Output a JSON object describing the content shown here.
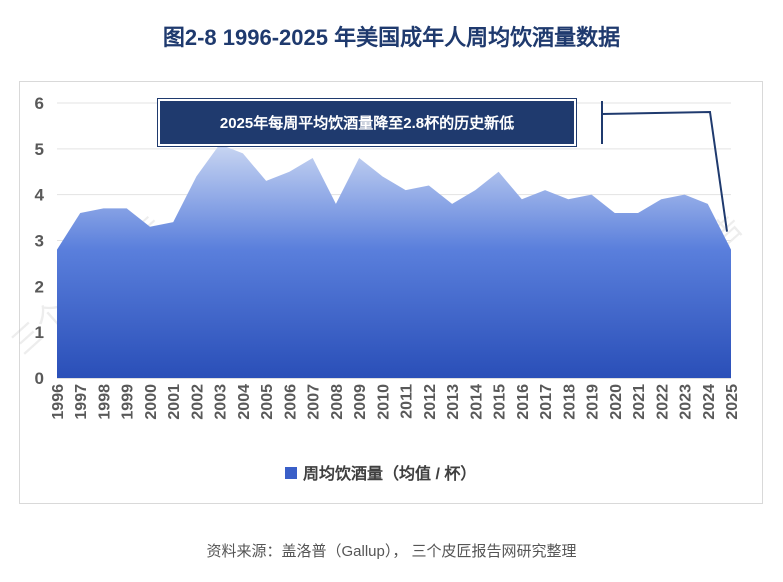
{
  "title": "图2-8 1996-2025  年美国成年人周均饮酒量数据",
  "source": "资料来源：盖洛普（Gallup），  三个皮匠报告网研究整理",
  "watermark": "三个皮匠报告",
  "callout": "2025年每周平均饮酒量降至2.8杯的历史新低",
  "colors": {
    "title": "#1f3a6e",
    "area_top": "#c9d6f2",
    "area_bottom": "#2f55c0",
    "callout_bg": "#1f3a6e",
    "axis_text": "#595959"
  },
  "chart_data": {
    "type": "area",
    "x": [
      "1996",
      "1997",
      "1998",
      "1999",
      "2000",
      "2001",
      "2002",
      "2003",
      "2004",
      "2005",
      "2006",
      "2007",
      "2008",
      "2009",
      "2010",
      "2011",
      "2012",
      "2013",
      "2014",
      "2015",
      "2016",
      "2017",
      "2018",
      "2019",
      "2020",
      "2021",
      "2022",
      "2023",
      "2024",
      "2025"
    ],
    "series": [
      {
        "name": "周均饮酒量（均值 / 杯）",
        "values": [
          2.8,
          3.6,
          3.7,
          3.7,
          3.3,
          3.4,
          4.4,
          5.1,
          4.9,
          4.3,
          4.5,
          4.8,
          3.8,
          4.8,
          4.4,
          4.1,
          4.2,
          3.8,
          4.1,
          4.5,
          3.9,
          4.1,
          3.9,
          4.0,
          3.6,
          3.6,
          3.9,
          4.0,
          3.8,
          2.8
        ]
      }
    ],
    "y_ticks": [
      "0",
      "1",
      "2",
      "3",
      "4",
      "5",
      "6"
    ],
    "ylim": [
      0,
      6
    ],
    "grid": true,
    "legend": "bottom"
  }
}
